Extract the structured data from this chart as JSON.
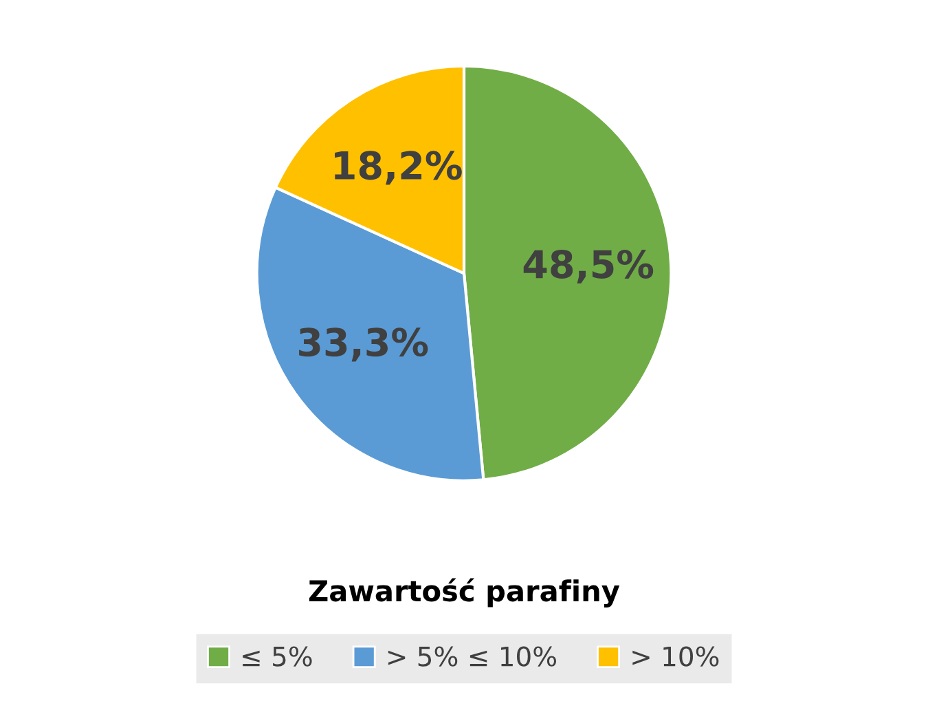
{
  "chart_data": {
    "type": "pie",
    "title": "Zawartość parafiny",
    "categories": [
      "≤ 5%",
      "> 5% ≤ 10%",
      "> 10%"
    ],
    "values": [
      48.5,
      33.3,
      18.2
    ],
    "value_labels": [
      "48,5%",
      "33,3%",
      "18,2%"
    ],
    "colors": [
      "#70ad47",
      "#5b9bd5",
      "#ffc000"
    ],
    "legend": "bottom"
  }
}
